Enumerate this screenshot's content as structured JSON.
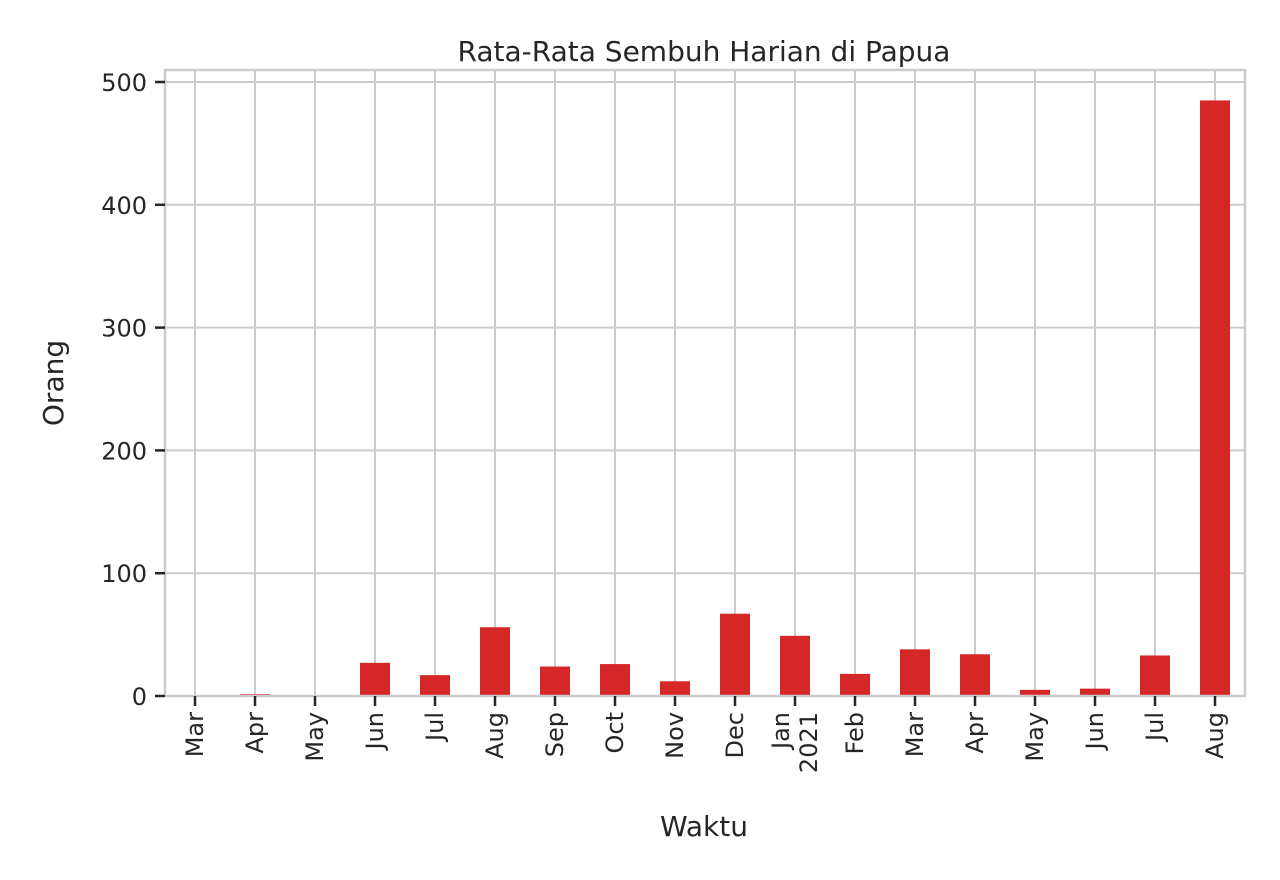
{
  "chart_data": {
    "type": "bar",
    "title": "Rata-Rata Sembuh Harian di Papua",
    "xlabel": "Waktu",
    "ylabel": "Orang",
    "ylim": [
      0,
      510
    ],
    "yticks": [
      0,
      100,
      200,
      300,
      400,
      500
    ],
    "grid": true,
    "color": "#d62728",
    "categories": [
      "Mar",
      "Apr",
      "May",
      "Jun",
      "Jul",
      "Aug",
      "Sep",
      "Oct",
      "Nov",
      "Dec",
      "Jan\n2021",
      "Feb",
      "Mar",
      "Apr",
      "May",
      "Jun",
      "Jul",
      "Aug"
    ],
    "values": [
      0.3,
      1.5,
      0.3,
      27,
      17,
      56,
      24,
      26,
      12,
      67,
      49,
      18,
      38,
      34,
      5,
      6,
      33,
      485
    ]
  }
}
